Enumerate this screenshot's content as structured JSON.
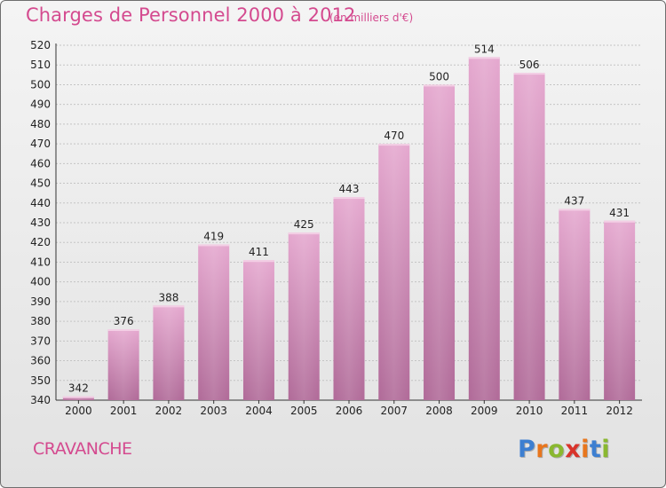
{
  "header": {
    "title": "Charges de Personnel 2000 à 2012",
    "subtitle": "(en milliers d'€)"
  },
  "footer": {
    "commune": "CRAVANCHE",
    "logo_text": "Proxiti"
  },
  "colors": {
    "bar_top": "#e5a8cf",
    "bar_bottom": "#b06a98",
    "title": "#d44a8f",
    "logo_letters": [
      "#3d7fd1",
      "#e8761d",
      "#8ab830",
      "#d9342b",
      "#e8761d",
      "#3d7fd1",
      "#8ab830"
    ]
  },
  "chart_data": {
    "type": "bar",
    "title": "Charges de Personnel 2000 à 2012",
    "subtitle": "(en milliers d'€)",
    "xlabel": "",
    "ylabel": "",
    "categories": [
      "2000",
      "2001",
      "2002",
      "2003",
      "2004",
      "2005",
      "2006",
      "2007",
      "2008",
      "2009",
      "2010",
      "2011",
      "2012"
    ],
    "values": [
      342,
      376,
      388,
      419,
      411,
      425,
      443,
      470,
      500,
      514,
      506,
      437,
      431
    ],
    "ylim": [
      340,
      520
    ],
    "ytick_step": 10,
    "grid": true,
    "legend": "none"
  }
}
